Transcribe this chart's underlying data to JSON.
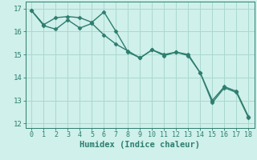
{
  "xlabel": "Humidex (Indice chaleur)",
  "x": [
    0,
    1,
    2,
    3,
    4,
    5,
    6,
    7,
    8,
    9,
    10,
    11,
    12,
    13,
    14,
    15,
    16,
    17,
    18
  ],
  "line1": [
    16.9,
    16.3,
    16.6,
    16.65,
    16.6,
    16.4,
    16.85,
    16.0,
    15.1,
    14.85,
    15.2,
    15.0,
    15.1,
    15.0,
    14.2,
    13.0,
    13.6,
    13.4,
    12.3
  ],
  "line2": [
    16.9,
    16.25,
    16.1,
    16.5,
    16.15,
    16.35,
    15.85,
    15.45,
    15.15,
    14.85,
    15.2,
    14.95,
    15.1,
    14.95,
    14.2,
    12.9,
    13.55,
    13.35,
    12.25
  ],
  "line_color": "#2e7d6e",
  "bg_color": "#cff0eb",
  "grid_color": "#aad8d0",
  "xlim": [
    -0.5,
    18.5
  ],
  "ylim": [
    11.8,
    17.3
  ],
  "yticks": [
    12,
    13,
    14,
    15,
    16,
    17
  ],
  "xticks": [
    0,
    1,
    2,
    3,
    4,
    5,
    6,
    7,
    8,
    9,
    10,
    11,
    12,
    13,
    14,
    15,
    16,
    17,
    18
  ],
  "markersize": 2.5,
  "linewidth": 1.0
}
